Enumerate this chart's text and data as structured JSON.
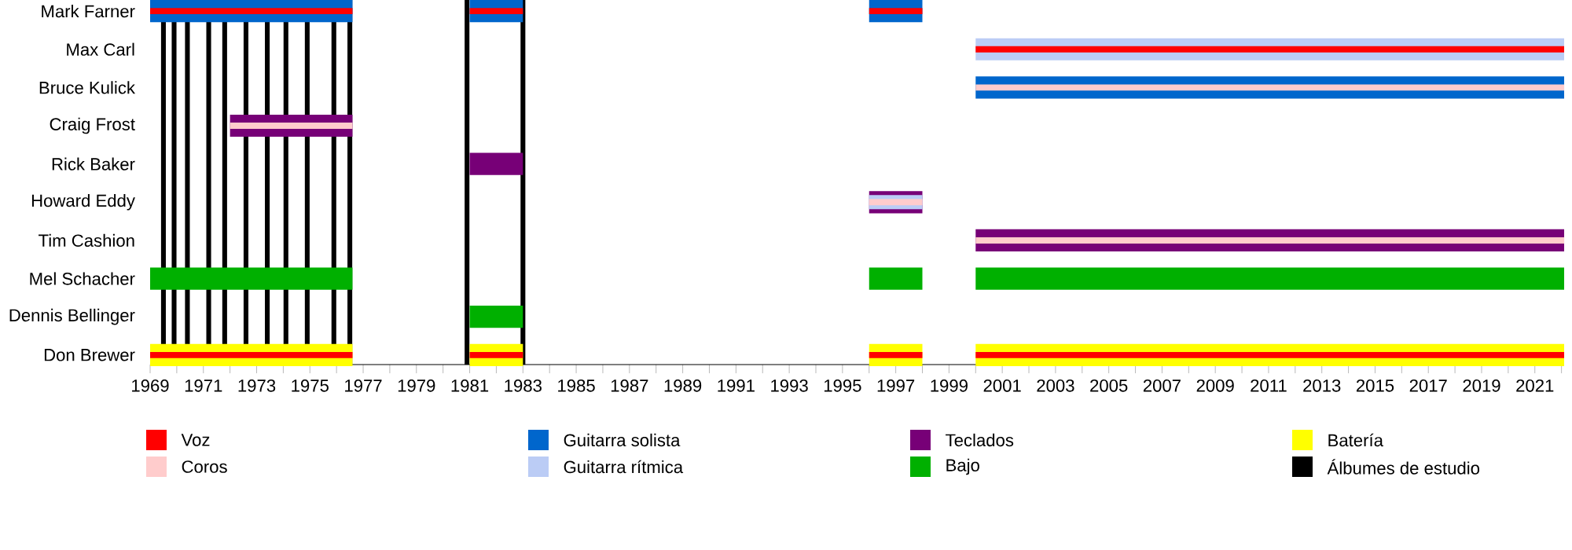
{
  "chart_data": {
    "type": "bar",
    "orientation": "horizontal",
    "legend": "bottom",
    "categories": [
      "Mark Farner",
      "Max Carl",
      "Bruce Kulick",
      "Craig Frost",
      "Rick Baker",
      "Howard Eddy",
      "Tim Cashion",
      "Mel Schacher",
      "Dennis Bellinger",
      "Don Brewer"
    ],
    "xlim": [
      1969,
      2022.1
    ],
    "xticks": [
      1969,
      {
        "value": 1970,
        "label": null
      },
      1971,
      {
        "value": 1972,
        "label": null
      },
      1973,
      {
        "value": 1974,
        "label": null
      },
      1975,
      {
        "value": 1976,
        "label": null
      },
      1977,
      {
        "value": 1978,
        "label": null
      },
      1979,
      {
        "value": 1980,
        "label": null
      },
      1981,
      {
        "value": 1982,
        "label": null
      },
      1983,
      {
        "value": 1984,
        "label": null
      },
      1985,
      {
        "value": 1986,
        "label": null
      },
      1987,
      {
        "value": 1988,
        "label": null
      },
      1989,
      {
        "value": 1990,
        "label": null
      },
      1991,
      {
        "value": 1992,
        "label": null
      },
      1993,
      {
        "value": 1994,
        "label": null
      },
      1995,
      {
        "value": 1996,
        "label": null
      },
      1997,
      {
        "value": 1998,
        "label": null
      },
      1999,
      {
        "value": 2000,
        "label": null
      },
      2001,
      {
        "value": 2002,
        "label": null
      },
      2003,
      {
        "value": 2004,
        "label": null
      },
      2005,
      {
        "value": 2006,
        "label": null
      },
      2007,
      {
        "value": 2008,
        "label": null
      },
      2009,
      {
        "value": 2010,
        "label": null
      },
      2011,
      {
        "value": 2012,
        "label": null
      },
      2013,
      {
        "value": 2014,
        "label": null
      },
      2015,
      {
        "value": 2016,
        "label": null
      },
      2017,
      {
        "value": 2018,
        "label": null
      },
      2019,
      {
        "value": 2020,
        "label": null
      },
      2021,
      {
        "value": 2022,
        "label": null
      }
    ],
    "series": [
      {
        "name": "Voz",
        "color": "#ff0000",
        "base": [
          1969,
          2000,
          null,
          null,
          null,
          null,
          null,
          null,
          null,
          1969
        ],
        "values": [
          7.6,
          22.1,
          null,
          null,
          null,
          null,
          null,
          null,
          null,
          7.6
        ]
      },
      {
        "color": "#ff0000",
        "base": [
          1981,
          null,
          null,
          null,
          null,
          null,
          null,
          null,
          null,
          1981
        ],
        "values": [
          2,
          null,
          null,
          null,
          null,
          null,
          null,
          null,
          null,
          2
        ]
      },
      {
        "color": "#ff0000",
        "base": [
          1996,
          null,
          null,
          null,
          null,
          null,
          null,
          null,
          null,
          1996
        ],
        "values": [
          2,
          null,
          null,
          null,
          null,
          null,
          null,
          null,
          null,
          2
        ]
      },
      {
        "color": "#ff0000",
        "base": [
          null,
          null,
          null,
          null,
          null,
          null,
          null,
          null,
          null,
          2000
        ],
        "values": [
          null,
          null,
          null,
          null,
          null,
          null,
          null,
          null,
          null,
          22.1
        ]
      },
      {
        "name": "Coros",
        "color": "#ffcccc",
        "base": [
          null,
          null,
          2000,
          1972,
          null,
          1996,
          2000,
          null,
          null,
          null
        ],
        "values": [
          null,
          null,
          22.1,
          4.6,
          null,
          2,
          22.1,
          null,
          null,
          null
        ]
      },
      {
        "name": "Guitarra solista",
        "color": "#0066cc",
        "base": [
          1969,
          null,
          2000,
          null,
          null,
          null,
          null,
          null,
          null,
          null
        ],
        "values": [
          7.6,
          null,
          22.1,
          null,
          null,
          null,
          null,
          null,
          null,
          null
        ]
      },
      {
        "color": "#0066cc",
        "base": [
          1981,
          null,
          null,
          null,
          null,
          null,
          null,
          null,
          null,
          null
        ],
        "values": [
          2,
          null,
          null,
          null,
          null,
          null,
          null,
          null,
          null,
          null
        ]
      },
      {
        "color": "#0066cc",
        "base": [
          1996,
          null,
          null,
          null,
          null,
          null,
          null,
          null,
          null,
          null
        ],
        "values": [
          2,
          null,
          null,
          null,
          null,
          null,
          null,
          null,
          null,
          null
        ]
      },
      {
        "name": "Guitarra rítmica",
        "color": "#bbccf5",
        "base": [
          null,
          2000,
          null,
          null,
          null,
          1996,
          null,
          null,
          null,
          null
        ],
        "values": [
          null,
          22.1,
          null,
          null,
          null,
          2,
          null,
          null,
          null,
          null
        ]
      },
      {
        "name": "Teclados",
        "color": "#770077",
        "base": [
          null,
          null,
          null,
          1972,
          1981,
          1996,
          2000,
          null,
          null,
          null
        ],
        "values": [
          null,
          null,
          null,
          4.6,
          2,
          2,
          22.1,
          null,
          null,
          null
        ]
      },
      {
        "name": "Bajo",
        "color": "#00b000",
        "base": [
          null,
          null,
          null,
          null,
          null,
          null,
          null,
          1969,
          1981,
          null
        ],
        "values": [
          null,
          null,
          null,
          null,
          null,
          null,
          null,
          7.6,
          2,
          null
        ]
      },
      {
        "color": "#00b000",
        "base": [
          null,
          null,
          null,
          null,
          null,
          null,
          null,
          1996,
          null,
          null
        ],
        "values": [
          null,
          null,
          null,
          null,
          null,
          null,
          null,
          2,
          null,
          null
        ]
      },
      {
        "color": "#00b000",
        "base": [
          null,
          null,
          null,
          null,
          null,
          null,
          null,
          2000,
          null,
          null
        ],
        "values": [
          null,
          null,
          null,
          null,
          null,
          null,
          null,
          22.1,
          null,
          null
        ]
      },
      {
        "name": "Batería",
        "color": "#ffff00",
        "base": [
          null,
          null,
          null,
          null,
          null,
          null,
          null,
          null,
          null,
          1969
        ],
        "values": [
          null,
          null,
          null,
          null,
          null,
          null,
          null,
          null,
          null,
          7.6
        ]
      },
      {
        "color": "#ffff00",
        "base": [
          null,
          null,
          null,
          null,
          null,
          null,
          null,
          null,
          null,
          1981
        ],
        "values": [
          null,
          null,
          null,
          null,
          null,
          null,
          null,
          null,
          null,
          2
        ]
      },
      {
        "color": "#ffff00",
        "base": [
          null,
          null,
          null,
          null,
          null,
          null,
          null,
          null,
          null,
          1996
        ],
        "values": [
          null,
          null,
          null,
          null,
          null,
          null,
          null,
          null,
          null,
          2
        ]
      },
      {
        "color": "#ffff00",
        "base": [
          null,
          null,
          null,
          null,
          null,
          null,
          null,
          null,
          null,
          2000
        ],
        "values": [
          null,
          null,
          null,
          null,
          null,
          null,
          null,
          null,
          null,
          22.1
        ]
      }
    ],
    "ref_lines": [
      {
        "axis": "x",
        "value": 1969.5,
        "color": "#000000",
        "label": "Álbumes de estudio"
      },
      {
        "axis": "x",
        "value": 1969.9,
        "color": "#000000"
      },
      {
        "axis": "x",
        "value": 1970.4,
        "color": "#000000"
      },
      {
        "axis": "x",
        "value": 1971.2,
        "color": "#000000"
      },
      {
        "axis": "x",
        "value": 1971.8,
        "color": "#000000"
      },
      {
        "axis": "x",
        "value": 1972.6,
        "color": "#000000"
      },
      {
        "axis": "x",
        "value": 1973.4,
        "color": "#000000"
      },
      {
        "axis": "x",
        "value": 1974.1,
        "color": "#000000"
      },
      {
        "axis": "x",
        "value": 1974.9,
        "color": "#000000"
      },
      {
        "axis": "x",
        "value": 1975.9,
        "color": "#000000"
      },
      {
        "axis": "x",
        "value": 1976.5,
        "color": "#000000"
      },
      {
        "axis": "x",
        "value": 1980.9,
        "color": "#000000"
      },
      {
        "axis": "x",
        "value": 1983.0,
        "color": "#000000"
      }
    ]
  }
}
